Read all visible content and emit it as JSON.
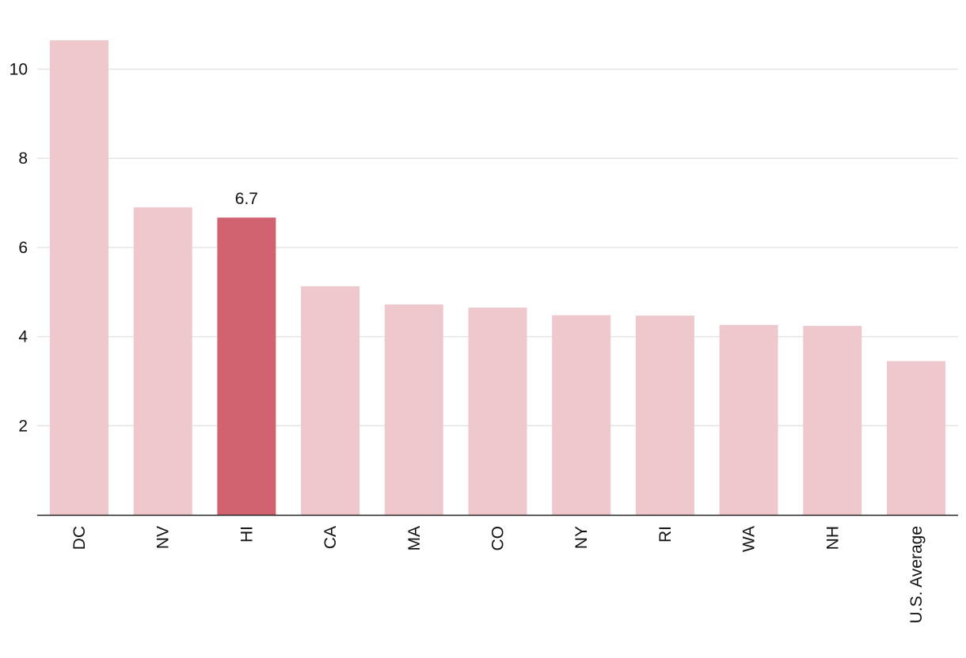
{
  "chart_data": {
    "type": "bar",
    "title": "",
    "xlabel": "",
    "ylabel": "",
    "categories": [
      "DC",
      "NV",
      "HI",
      "CA",
      "MA",
      "CO",
      "NY",
      "RI",
      "WA",
      "NH",
      "U.S. Average"
    ],
    "values": [
      10.65,
      6.9,
      6.67,
      5.13,
      4.72,
      4.65,
      4.48,
      4.47,
      4.26,
      4.24,
      3.45
    ],
    "ylim": [
      0,
      11.6
    ],
    "yticks": [
      2,
      4,
      6,
      8,
      10
    ],
    "ytick_labels": [
      "2",
      "4",
      "6",
      "8",
      "10"
    ],
    "grid": true,
    "legend": "none",
    "highlight_index": 2,
    "highlight_label": "6.7",
    "colors": {
      "bar": "#efc8cd",
      "highlight": "#d1626f",
      "grid": "#e5e5e5",
      "axis": "#222222",
      "text": "#111111"
    }
  }
}
